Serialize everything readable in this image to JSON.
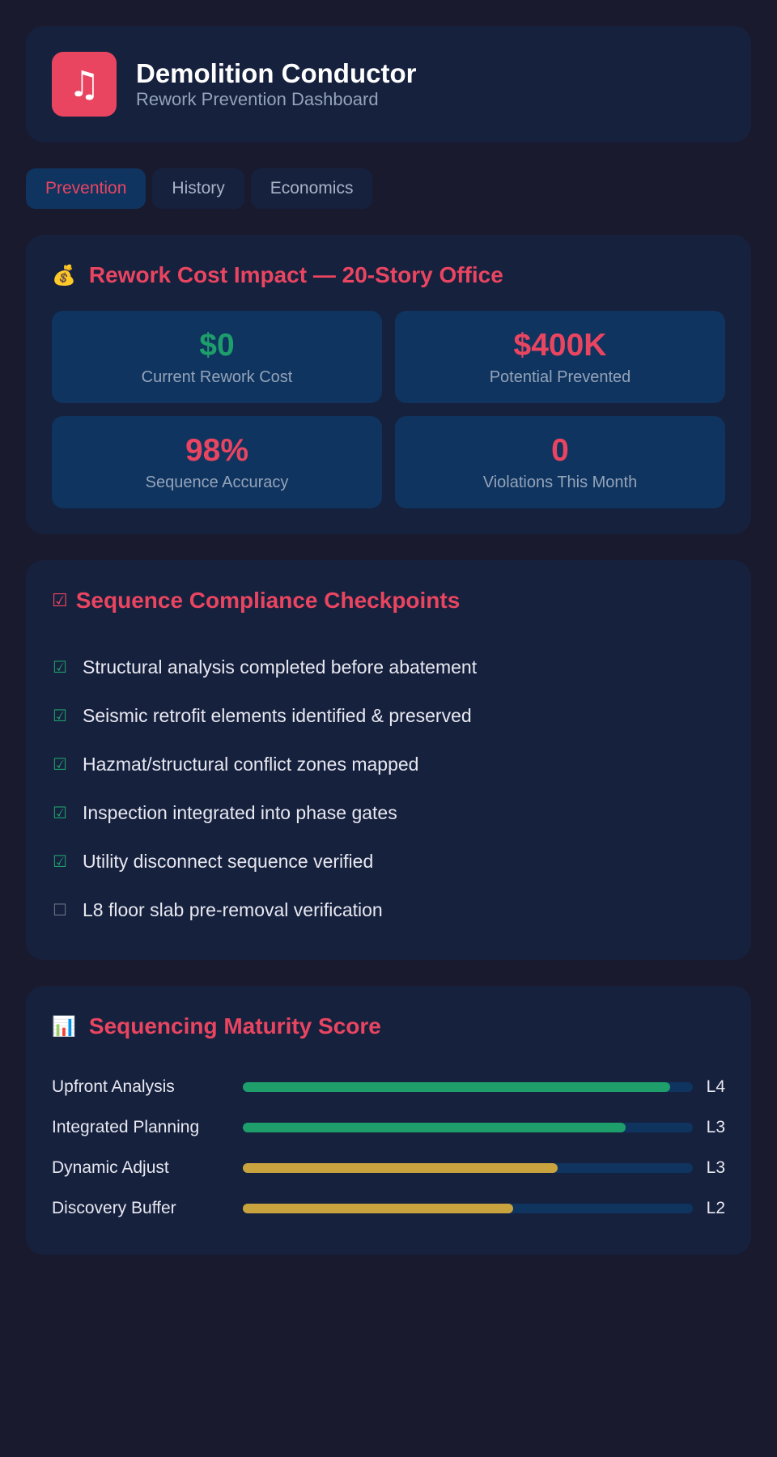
{
  "colors": {
    "accent": "#e94560",
    "success": "#1e9e6a",
    "warning": "#c9a33e",
    "muted": "#94a3b8"
  },
  "header": {
    "icon": "music-note-icon",
    "icon_glyph": "♫",
    "title": "Demolition Conductor",
    "subtitle": "Rework Prevention Dashboard"
  },
  "tabs": [
    {
      "label": "Prevention",
      "active": true
    },
    {
      "label": "History",
      "active": false
    },
    {
      "label": "Economics",
      "active": false
    }
  ],
  "rework": {
    "icon": "money-bag-icon",
    "icon_glyph": "💰",
    "title": "Rework Cost Impact — 20-Story Office",
    "metrics": [
      {
        "value": "$0",
        "label": "Current Rework Cost",
        "tone": "success"
      },
      {
        "value": "$400K",
        "label": "Potential Prevented",
        "tone": "accent"
      },
      {
        "value": "98%",
        "label": "Sequence Accuracy",
        "tone": "accent"
      },
      {
        "value": "0",
        "label": "Violations This Month",
        "tone": "accent"
      }
    ]
  },
  "compliance": {
    "icon": "checkbox-icon",
    "icon_glyph": "☑",
    "title": "Sequence Compliance Checkpoints",
    "items": [
      {
        "label": "Structural analysis completed before abatement",
        "checked": true
      },
      {
        "label": "Seismic retrofit elements identified & preserved",
        "checked": true
      },
      {
        "label": "Hazmat/structural conflict zones mapped",
        "checked": true
      },
      {
        "label": "Inspection integrated into phase gates",
        "checked": true
      },
      {
        "label": "Utility disconnect sequence verified",
        "checked": true
      },
      {
        "label": "L8 floor slab pre-removal verification",
        "checked": false
      }
    ]
  },
  "maturity": {
    "icon": "bar-chart-icon",
    "icon_glyph": "📊",
    "title": "Sequencing Maturity Score",
    "rows": [
      {
        "label": "Upfront Analysis",
        "level": "L4",
        "progress": 0.95,
        "tone": "success"
      },
      {
        "label": "Integrated Planning",
        "level": "L3",
        "progress": 0.85,
        "tone": "success"
      },
      {
        "label": "Dynamic Adjust",
        "level": "L3",
        "progress": 0.7,
        "tone": "warning"
      },
      {
        "label": "Discovery Buffer",
        "level": "L2",
        "progress": 0.6,
        "tone": "warning"
      }
    ]
  }
}
